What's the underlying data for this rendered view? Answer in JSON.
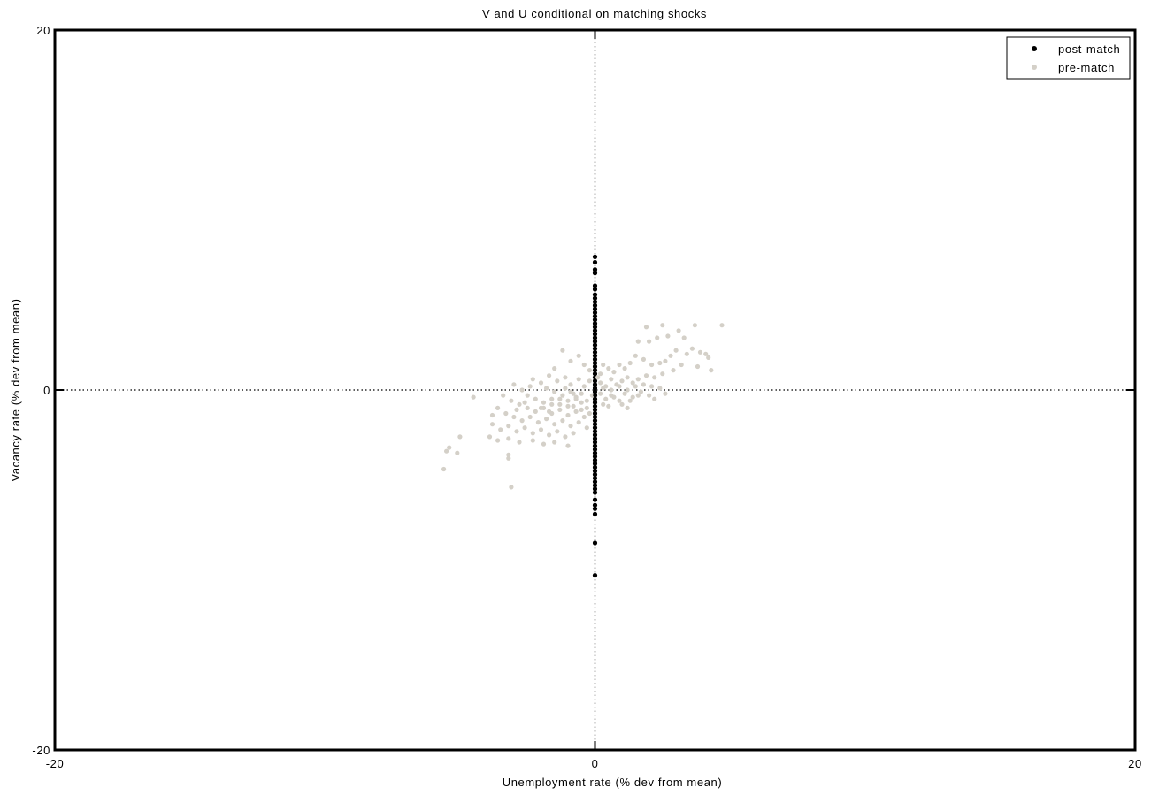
{
  "chart_data": {
    "type": "scatter",
    "title": "V and U conditional on matching shocks",
    "xlabel": "Unemployment rate (% dev from mean)",
    "ylabel": "Vacancy rate (% dev from mean)",
    "xlim": [
      -20,
      20
    ],
    "ylim": [
      -20,
      20
    ],
    "x_ticks": [
      "-20",
      "0",
      "20"
    ],
    "y_ticks": [
      "-20",
      "0",
      "20"
    ],
    "reference_lines": {
      "x": 0,
      "y": 0,
      "style": "dotted"
    },
    "grid": false,
    "legend_position": "top-right",
    "series": [
      {
        "name": "post-match",
        "color": "#000000",
        "points": [
          [
            0,
            7.4
          ],
          [
            0,
            7.1
          ],
          [
            0,
            6.7
          ],
          [
            0,
            6.5
          ],
          [
            0,
            5.8
          ],
          [
            0,
            5.6
          ],
          [
            0,
            5.3
          ],
          [
            0,
            5.1
          ],
          [
            0,
            4.9
          ],
          [
            0,
            4.7
          ],
          [
            0,
            4.5
          ],
          [
            0,
            4.3
          ],
          [
            0,
            4.1
          ],
          [
            0,
            3.9
          ],
          [
            0,
            3.7
          ],
          [
            0,
            3.5
          ],
          [
            0,
            3.3
          ],
          [
            0,
            3.1
          ],
          [
            0,
            2.9
          ],
          [
            0,
            2.7
          ],
          [
            0,
            2.5
          ],
          [
            0,
            2.3
          ],
          [
            0,
            2.1
          ],
          [
            0,
            1.9
          ],
          [
            0,
            1.7
          ],
          [
            0,
            1.5
          ],
          [
            0,
            1.3
          ],
          [
            0,
            1.1
          ],
          [
            0,
            0.9
          ],
          [
            0,
            0.7
          ],
          [
            0,
            0.5
          ],
          [
            0,
            0.3
          ],
          [
            0,
            0.1
          ],
          [
            0,
            -0.1
          ],
          [
            0,
            -0.3
          ],
          [
            0,
            -0.5
          ],
          [
            0,
            -0.7
          ],
          [
            0,
            -0.9
          ],
          [
            0,
            -1.1
          ],
          [
            0,
            -1.3
          ],
          [
            0,
            -1.5
          ],
          [
            0,
            -1.7
          ],
          [
            0,
            -1.9
          ],
          [
            0,
            -2.1
          ],
          [
            0,
            -2.3
          ],
          [
            0,
            -2.5
          ],
          [
            0,
            -2.7
          ],
          [
            0,
            -2.9
          ],
          [
            0,
            -3.1
          ],
          [
            0,
            -3.3
          ],
          [
            0,
            -3.5
          ],
          [
            0,
            -3.7
          ],
          [
            0,
            -3.9
          ],
          [
            0,
            -4.1
          ],
          [
            0,
            -4.3
          ],
          [
            0,
            -4.5
          ],
          [
            0,
            -4.7
          ],
          [
            0,
            -4.9
          ],
          [
            0,
            -5.1
          ],
          [
            0,
            -5.3
          ],
          [
            0,
            -5.5
          ],
          [
            0,
            -5.7
          ],
          [
            0,
            -6.1
          ],
          [
            0,
            -6.4
          ],
          [
            0,
            -6.6
          ],
          [
            0,
            -6.9
          ],
          [
            0,
            -8.5
          ],
          [
            0,
            -10.3
          ]
        ]
      },
      {
        "name": "pre-match",
        "color": "#d4d0c8",
        "points": [
          [
            4.7,
            3.6
          ],
          [
            3.7,
            3.6
          ],
          [
            2.5,
            3.6
          ],
          [
            1.9,
            3.5
          ],
          [
            3.1,
            3.3
          ],
          [
            3.3,
            2.9
          ],
          [
            2.7,
            3.0
          ],
          [
            2.3,
            2.9
          ],
          [
            2.0,
            2.7
          ],
          [
            1.6,
            2.7
          ],
          [
            3.6,
            2.3
          ],
          [
            3.9,
            2.1
          ],
          [
            4.1,
            2.0
          ],
          [
            4.2,
            1.8
          ],
          [
            3.4,
            2.0
          ],
          [
            3.0,
            2.2
          ],
          [
            2.8,
            1.9
          ],
          [
            2.6,
            1.6
          ],
          [
            2.4,
            1.5
          ],
          [
            2.1,
            1.4
          ],
          [
            1.8,
            1.7
          ],
          [
            1.5,
            1.9
          ],
          [
            1.3,
            1.5
          ],
          [
            1.1,
            1.2
          ],
          [
            0.9,
            1.4
          ],
          [
            0.7,
            1.0
          ],
          [
            0.5,
            1.2
          ],
          [
            0.3,
            1.4
          ],
          [
            0.2,
            0.9
          ],
          [
            4.3,
            1.1
          ],
          [
            3.8,
            1.3
          ],
          [
            3.2,
            1.4
          ],
          [
            2.9,
            1.1
          ],
          [
            2.5,
            0.9
          ],
          [
            2.2,
            0.7
          ],
          [
            1.9,
            0.8
          ],
          [
            1.6,
            0.6
          ],
          [
            1.4,
            0.4
          ],
          [
            1.2,
            0.7
          ],
          [
            1.0,
            0.5
          ],
          [
            0.8,
            0.3
          ],
          [
            0.6,
            0.6
          ],
          [
            0.4,
            0.2
          ],
          [
            0.2,
            0.4
          ],
          [
            0.1,
            0.7
          ],
          [
            2.4,
            0.1
          ],
          [
            2.6,
            -0.2
          ],
          [
            2.2,
            -0.5
          ],
          [
            2.0,
            -0.3
          ],
          [
            1.7,
            -0.1
          ],
          [
            1.4,
            -0.4
          ],
          [
            1.1,
            -0.2
          ],
          [
            0.9,
            -0.6
          ],
          [
            0.6,
            -0.3
          ],
          [
            0.4,
            -0.5
          ],
          [
            0.2,
            -0.2
          ],
          [
            1.2,
            -1.0
          ],
          [
            0.5,
            -0.9
          ],
          [
            -1.2,
            2.2
          ],
          [
            -0.9,
            1.6
          ],
          [
            -0.6,
            1.9
          ],
          [
            -0.4,
            1.4
          ],
          [
            -0.2,
            1.1
          ],
          [
            -1.5,
            1.2
          ],
          [
            -1.7,
            0.8
          ],
          [
            -1.4,
            0.5
          ],
          [
            -1.1,
            0.7
          ],
          [
            -0.9,
            0.3
          ],
          [
            -0.6,
            0.6
          ],
          [
            -0.4,
            0.2
          ],
          [
            -0.2,
            0.5
          ],
          [
            -2.3,
            0.6
          ],
          [
            -2.0,
            0.4
          ],
          [
            -1.8,
            0.1
          ],
          [
            -1.5,
            -0.1
          ],
          [
            -1.2,
            -0.3
          ],
          [
            -0.9,
            -0.1
          ],
          [
            -0.7,
            -0.4
          ],
          [
            -0.5,
            -0.2
          ],
          [
            -0.3,
            -0.6
          ],
          [
            -0.1,
            -0.3
          ],
          [
            -3.0,
            0.3
          ],
          [
            -2.7,
            0.0
          ],
          [
            -2.5,
            -0.3
          ],
          [
            -2.2,
            -0.5
          ],
          [
            -1.9,
            -0.7
          ],
          [
            -1.6,
            -0.5
          ],
          [
            -1.3,
            -0.8
          ],
          [
            -1.0,
            -0.6
          ],
          [
            -0.8,
            -0.9
          ],
          [
            -0.5,
            -0.7
          ],
          [
            -0.3,
            -1.0
          ],
          [
            -3.4,
            -0.3
          ],
          [
            -3.1,
            -0.6
          ],
          [
            -2.8,
            -0.8
          ],
          [
            -2.5,
            -1.0
          ],
          [
            -2.2,
            -1.2
          ],
          [
            -1.9,
            -1.0
          ],
          [
            -1.6,
            -1.3
          ],
          [
            -1.3,
            -1.1
          ],
          [
            -1.0,
            -1.4
          ],
          [
            -0.7,
            -1.2
          ],
          [
            -0.4,
            -1.5
          ],
          [
            -0.2,
            -1.3
          ],
          [
            -3.6,
            -1.0
          ],
          [
            -3.3,
            -1.3
          ],
          [
            -3.0,
            -1.5
          ],
          [
            -2.7,
            -1.7
          ],
          [
            -2.4,
            -1.5
          ],
          [
            -2.1,
            -1.8
          ],
          [
            -1.8,
            -1.6
          ],
          [
            -1.5,
            -1.9
          ],
          [
            -1.2,
            -1.7
          ],
          [
            -0.9,
            -2.0
          ],
          [
            -0.6,
            -1.8
          ],
          [
            -0.3,
            -2.1
          ],
          [
            -3.8,
            -1.4
          ],
          [
            -3.8,
            -1.9
          ],
          [
            -3.5,
            -2.2
          ],
          [
            -3.2,
            -2.0
          ],
          [
            -2.9,
            -2.3
          ],
          [
            -2.6,
            -2.1
          ],
          [
            -2.3,
            -2.4
          ],
          [
            -2.0,
            -2.2
          ],
          [
            -1.7,
            -2.5
          ],
          [
            -1.4,
            -2.3
          ],
          [
            -1.1,
            -2.6
          ],
          [
            -0.8,
            -2.4
          ],
          [
            -3.9,
            -2.6
          ],
          [
            -3.6,
            -2.8
          ],
          [
            -3.2,
            -2.7
          ],
          [
            -2.8,
            -2.9
          ],
          [
            -2.3,
            -2.8
          ],
          [
            -1.9,
            -3.0
          ],
          [
            -1.5,
            -2.9
          ],
          [
            -1.0,
            -3.1
          ],
          [
            -3.2,
            -3.6
          ],
          [
            -3.2,
            -3.8
          ],
          [
            -5.0,
            -2.6
          ],
          [
            -5.4,
            -3.2
          ],
          [
            -5.5,
            -3.4
          ],
          [
            -5.1,
            -3.5
          ],
          [
            -5.6,
            -4.4
          ],
          [
            -4.5,
            -0.4
          ],
          [
            -3.1,
            -5.4
          ],
          [
            -1.6,
            -0.8
          ],
          [
            -1.3,
            -0.5
          ],
          [
            -1.0,
            -0.9
          ],
          [
            -0.7,
            -0.5
          ],
          [
            -0.5,
            -1.1
          ],
          [
            -2.0,
            -1.0
          ],
          [
            -1.7,
            -1.2
          ],
          [
            -2.6,
            -0.7
          ],
          [
            -2.9,
            -1.1
          ],
          [
            -2.4,
            0.2
          ],
          [
            -1.1,
            0.1
          ],
          [
            -0.8,
            -0.2
          ],
          [
            0.3,
            -0.8
          ],
          [
            0.7,
            -0.4
          ],
          [
            1.0,
            -0.8
          ],
          [
            1.3,
            -0.6
          ],
          [
            1.6,
            -0.3
          ],
          [
            1.8,
            0.3
          ],
          [
            2.1,
            0.2
          ],
          [
            0.3,
            0.1
          ],
          [
            0.6,
            0.0
          ],
          [
            0.9,
            0.2
          ],
          [
            1.2,
            0.0
          ],
          [
            1.5,
            0.2
          ]
        ]
      }
    ]
  }
}
